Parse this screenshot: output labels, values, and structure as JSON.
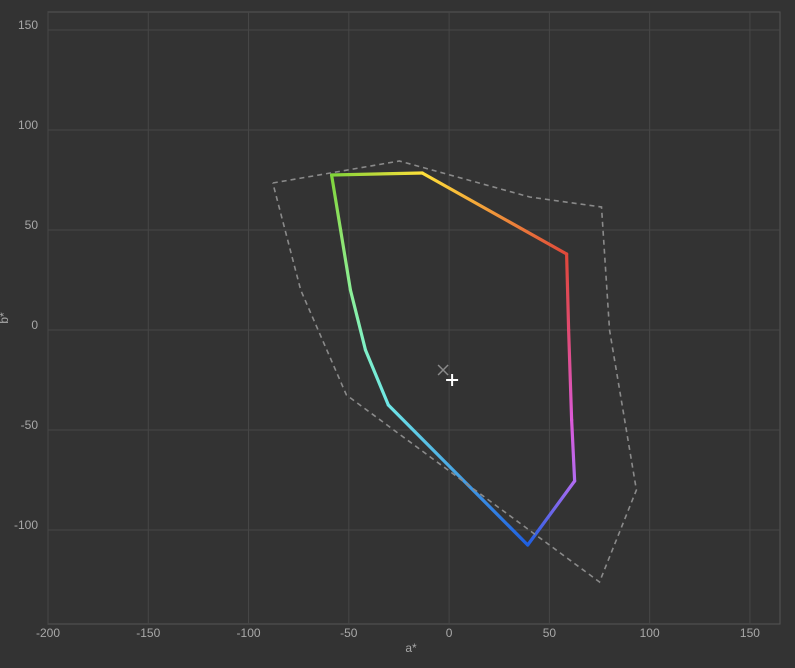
{
  "chart_data": {
    "type": "line",
    "x_label": "a*",
    "y_label": "b*",
    "xlim": [
      -200,
      165
    ],
    "ylim": [
      -147,
      159
    ],
    "xticks": [
      -200,
      -150,
      -100,
      -50,
      0,
      50,
      100,
      150
    ],
    "yticks": [
      -100,
      -50,
      0,
      50,
      100,
      150
    ],
    "grid": true,
    "series": [
      {
        "style": "solid",
        "x": [
          -58.6,
          -13.4,
          58.6,
          59.6,
          61.1,
          62.6,
          39.2,
          -30.3,
          -41.7,
          -49.2,
          -54.1,
          -58.6
        ],
        "values": [
          77.5,
          78.5,
          38,
          0,
          -45,
          -75.5,
          -107.5,
          -37.5,
          -10,
          20,
          50,
          77.5
        ],
        "colors": [
          "#7fd43a",
          "#ffe13a",
          "#e0483a",
          "#e04a70",
          "#dc5ad8",
          "#b26cf2",
          "#1f5fe0",
          "#6fe6e6",
          "#7ff0c8",
          "#8cef96",
          "#8ee46a",
          "#7fd43a"
        ]
      },
      {
        "style": "dashed",
        "color": "#8a8a8a",
        "x": [
          -87.9,
          -24.8,
          40.2,
          76,
          80,
          93.4,
          75,
          -51.2,
          -74,
          -87.9
        ],
        "values": [
          73.5,
          84.5,
          66.5,
          61.5,
          0,
          -80,
          -126,
          -32.5,
          20,
          73.5
        ]
      }
    ],
    "markers": [
      {
        "symbol": "x",
        "color": "#8a8a8a",
        "x": -3,
        "y": -20
      },
      {
        "symbol": "+",
        "color": "#ffffff",
        "x": 1.5,
        "y": -25
      }
    ]
  }
}
